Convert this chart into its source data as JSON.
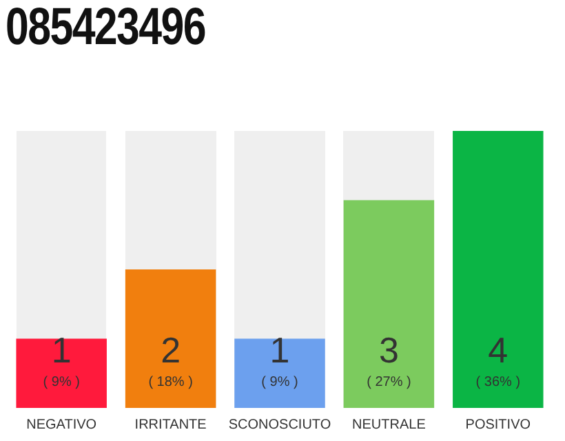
{
  "chart_data": {
    "type": "bar",
    "title": "085423496",
    "categories": [
      "NEGATIVO",
      "IRRITANTE",
      "SCONOSCIUTO",
      "NEUTRALE",
      "POSITIVO"
    ],
    "values": [
      1,
      2,
      1,
      3,
      4
    ],
    "colors": [
      "#ff1a3c",
      "#f17f0e",
      "#6ca0ee",
      "#7ccb5e",
      "#0bb545"
    ],
    "tick_labels": "x",
    "grid": false,
    "legend": false,
    "value_labels": [
      "1\n( 9% )",
      "2\n( 18% )",
      "1\n( 9% )",
      "3\n( 27% )",
      "4\n( 36% )"
    ]
  }
}
